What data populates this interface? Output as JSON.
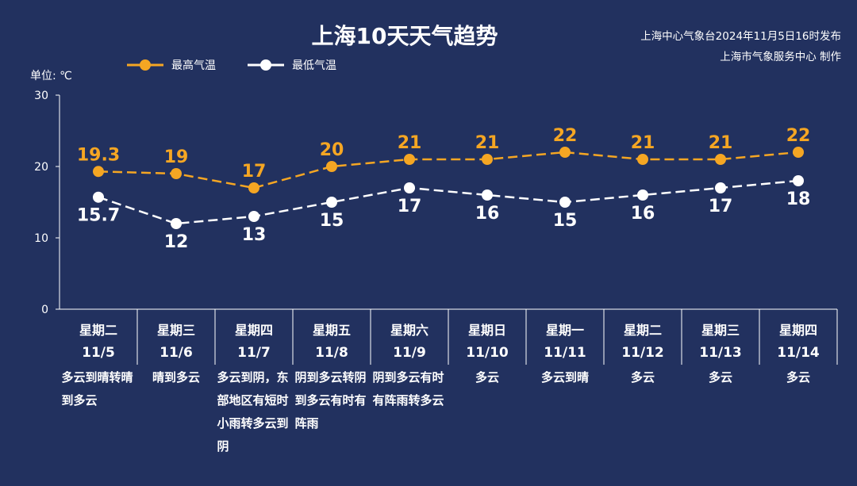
{
  "chart_data": {
    "type": "line",
    "title": "上海10天天气趋势",
    "ylabel": "单位: ℃",
    "ylim": [
      0,
      30
    ],
    "yticks": [
      0,
      10,
      20,
      30
    ],
    "legend_position": "top-left",
    "categories": [
      {
        "weekday": "星期二",
        "date": "11/5",
        "weather": "多云到晴转晴到多云"
      },
      {
        "weekday": "星期三",
        "date": "11/6",
        "weather": "晴到多云"
      },
      {
        "weekday": "星期四",
        "date": "11/7",
        "weather": "多云到阴，东部地区有短时小雨转多云到阴"
      },
      {
        "weekday": "星期五",
        "date": "11/8",
        "weather": "阴到多云转阴到多云有时有阵雨"
      },
      {
        "weekday": "星期六",
        "date": "11/9",
        "weather": "阴到多云有时有阵雨转多云"
      },
      {
        "weekday": "星期日",
        "date": "11/10",
        "weather": "多云"
      },
      {
        "weekday": "星期一",
        "date": "11/11",
        "weather": "多云到晴"
      },
      {
        "weekday": "星期二",
        "date": "11/12",
        "weather": "多云"
      },
      {
        "weekday": "星期三",
        "date": "11/13",
        "weather": "多云"
      },
      {
        "weekday": "星期四",
        "date": "11/14",
        "weather": "多云"
      }
    ],
    "series": [
      {
        "name": "最高气温",
        "color": "#f5a623",
        "values": [
          19.3,
          19,
          17,
          20,
          21,
          21,
          22,
          21,
          21,
          22
        ]
      },
      {
        "name": "最低气温",
        "color": "#ffffff",
        "values": [
          15.7,
          12,
          13,
          15,
          17,
          16,
          15,
          16,
          17,
          18
        ]
      }
    ]
  },
  "source": {
    "line1": "上海中心气象台2024年11月5日16时发布",
    "line2": "上海市气象服务中心 制作"
  }
}
